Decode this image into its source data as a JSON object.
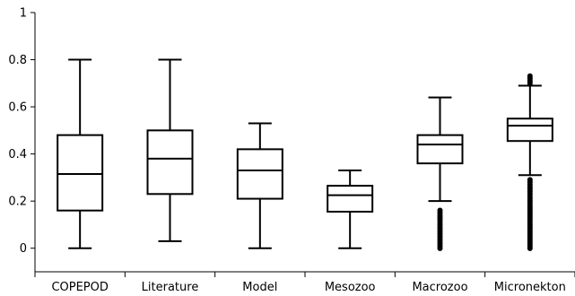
{
  "chart_data": {
    "type": "box",
    "title": "",
    "xlabel": "",
    "ylabel": "",
    "ylim": [
      -0.1,
      1.0
    ],
    "yticks": [
      0,
      0.2,
      0.4,
      0.6,
      0.8,
      1
    ],
    "ytick_labels": [
      "0",
      "0.2",
      "0.4",
      "0.6",
      "0.8",
      "1"
    ],
    "grid": false,
    "categories": [
      "COPEPOD",
      "Literature",
      "Model",
      "Mesozoo",
      "Macrozoo",
      "Micronekton"
    ],
    "boxes": [
      {
        "whisker_low": 0.0,
        "q1": 0.16,
        "median": 0.315,
        "q3": 0.48,
        "whisker_high": 0.8,
        "outliers": []
      },
      {
        "whisker_low": 0.03,
        "q1": 0.23,
        "median": 0.38,
        "q3": 0.5,
        "whisker_high": 0.8,
        "outliers": []
      },
      {
        "whisker_low": 0.0,
        "q1": 0.21,
        "median": 0.33,
        "q3": 0.42,
        "whisker_high": 0.53,
        "outliers": []
      },
      {
        "whisker_low": 0.0,
        "q1": 0.155,
        "median": 0.225,
        "q3": 0.265,
        "whisker_high": 0.33,
        "outliers": []
      },
      {
        "whisker_low": 0.2,
        "q1": 0.36,
        "median": 0.44,
        "q3": 0.48,
        "whisker_high": 0.64,
        "outliers": [
          0.0,
          0.01,
          0.02,
          0.03,
          0.04,
          0.05,
          0.06,
          0.07,
          0.08,
          0.09,
          0.1,
          0.11,
          0.12,
          0.13,
          0.14,
          0.15,
          0.16
        ]
      },
      {
        "whisker_low": 0.31,
        "q1": 0.455,
        "median": 0.52,
        "q3": 0.55,
        "whisker_high": 0.69,
        "outliers": [
          0.0,
          0.01,
          0.02,
          0.03,
          0.04,
          0.05,
          0.06,
          0.07,
          0.08,
          0.09,
          0.1,
          0.11,
          0.12,
          0.13,
          0.14,
          0.15,
          0.16,
          0.17,
          0.18,
          0.19,
          0.2,
          0.21,
          0.22,
          0.23,
          0.24,
          0.25,
          0.26,
          0.27,
          0.28,
          0.29,
          0.7,
          0.71,
          0.72,
          0.73
        ]
      }
    ]
  }
}
